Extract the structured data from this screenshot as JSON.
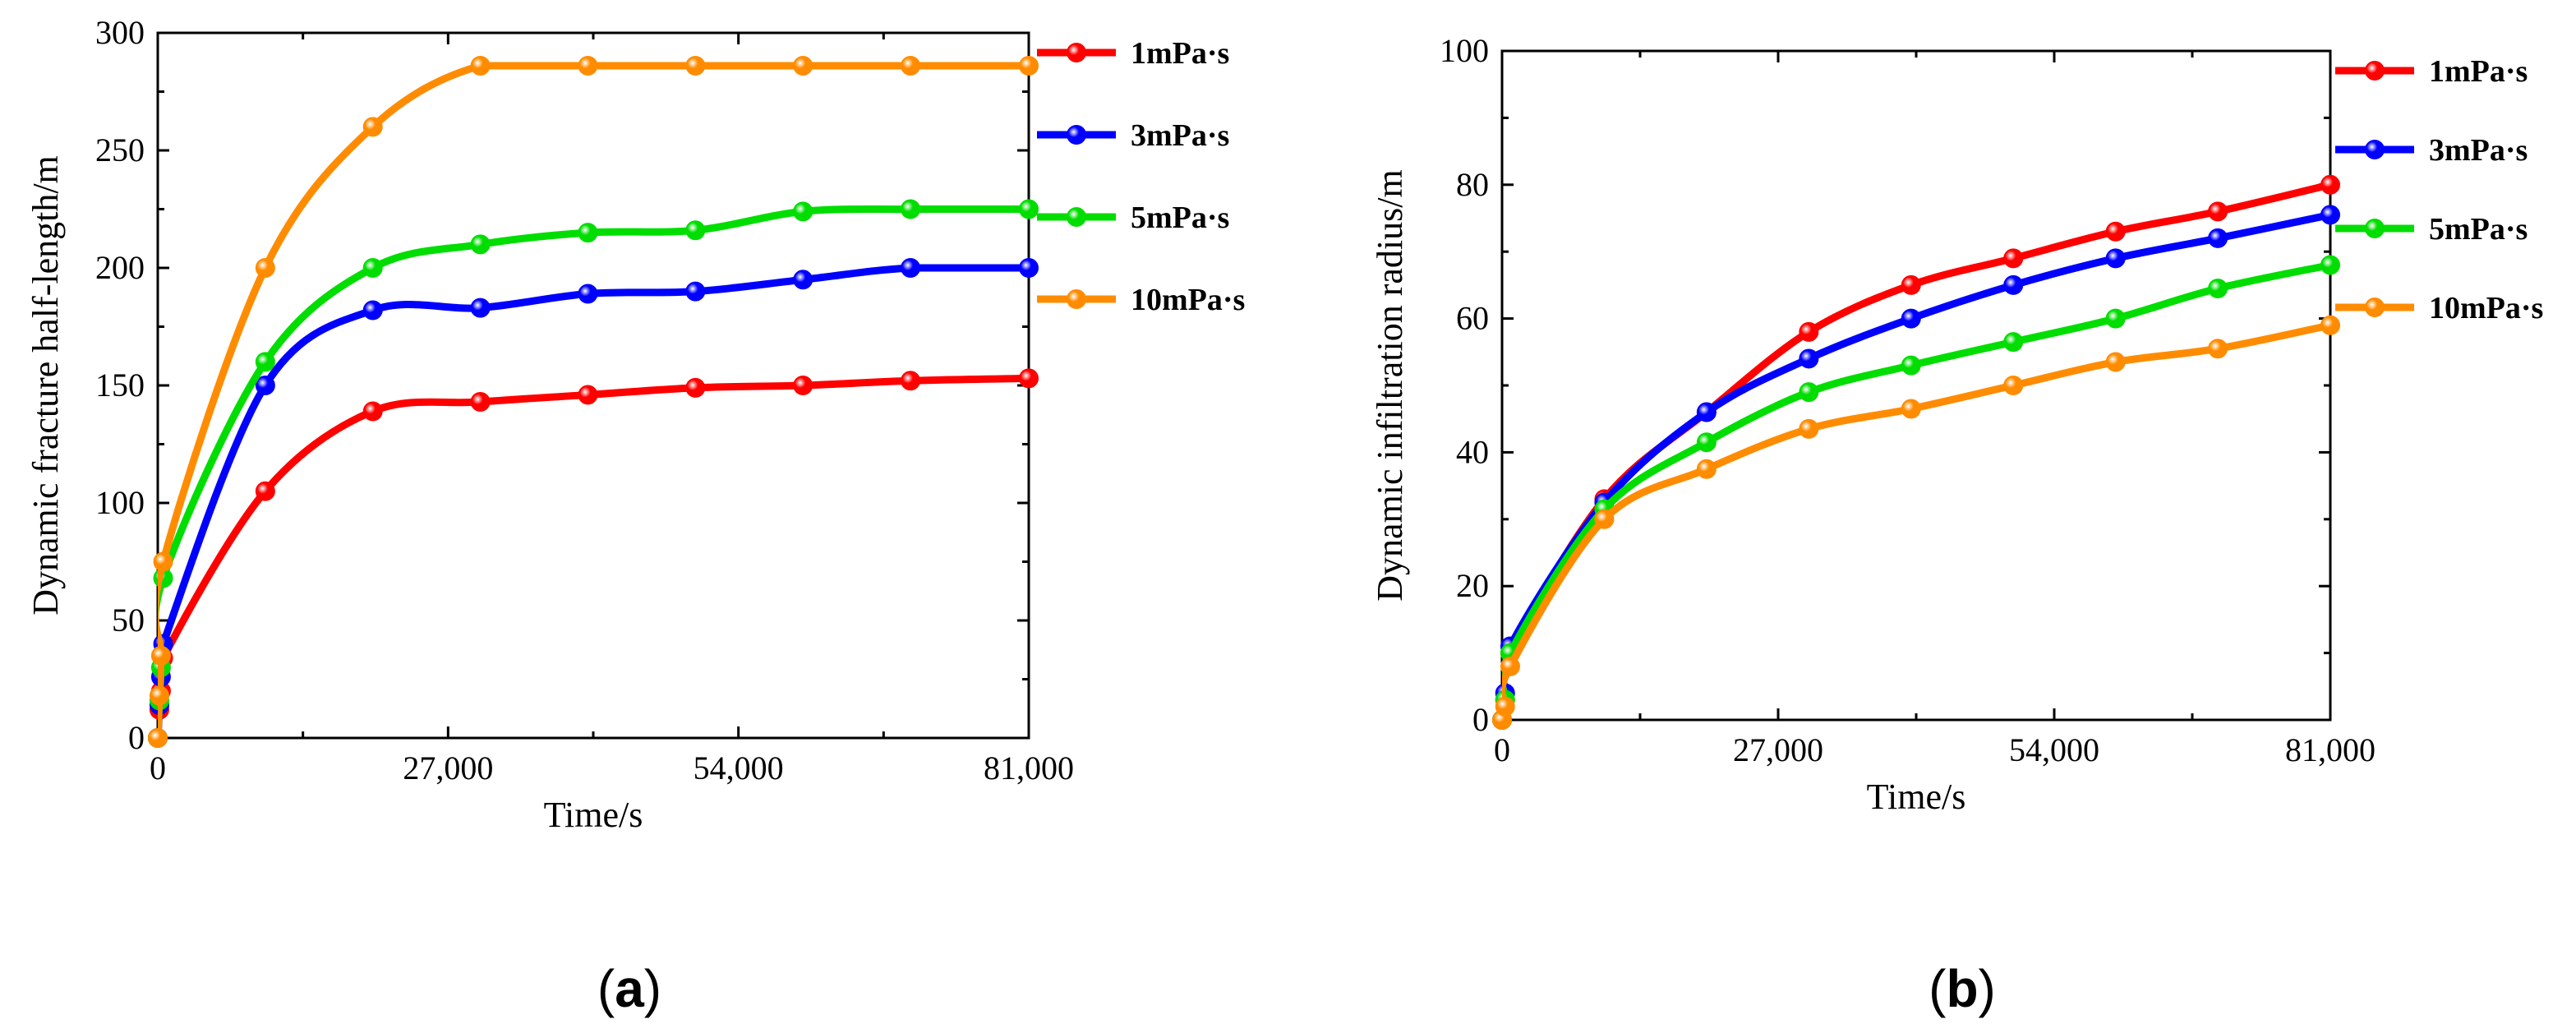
{
  "chart_data": [
    {
      "panel": "a",
      "caption": "(a)",
      "type": "line",
      "xlabel": "Time/s",
      "ylabel": "Dynamic fracture half-length/m",
      "xlim": [
        0,
        81000
      ],
      "ylim": [
        0,
        300
      ],
      "xticks": [
        0,
        27000,
        54000,
        81000
      ],
      "xtick_labels": [
        "0",
        "27,000",
        "54,000",
        "81,000"
      ],
      "yticks": [
        0,
        50,
        100,
        150,
        200,
        250,
        300
      ],
      "ytick_labels": [
        "0",
        "50",
        "100",
        "150",
        "200",
        "250",
        "300"
      ],
      "legend_position": "outside-right",
      "series": [
        {
          "name": "1mPa·s",
          "color": "#ff0000",
          "points": [
            [
              0,
              0
            ],
            [
              150,
              12
            ],
            [
              300,
              20
            ],
            [
              500,
              34
            ],
            [
              10000,
              105
            ],
            [
              20000,
              139
            ],
            [
              30000,
              143
            ],
            [
              40000,
              146
            ],
            [
              50000,
              149
            ],
            [
              60000,
              150
            ],
            [
              70000,
              152
            ],
            [
              81000,
              153
            ]
          ]
        },
        {
          "name": "3mPa·s",
          "color": "#0000ff",
          "points": [
            [
              0,
              0
            ],
            [
              150,
              14
            ],
            [
              300,
              26
            ],
            [
              500,
              40
            ],
            [
              10000,
              150
            ],
            [
              20000,
              182
            ],
            [
              30000,
              183
            ],
            [
              40000,
              189
            ],
            [
              50000,
              190
            ],
            [
              60000,
              195
            ],
            [
              70000,
              200
            ],
            [
              81000,
              200
            ]
          ]
        },
        {
          "name": "5mPa·s",
          "color": "#00dd00",
          "points": [
            [
              0,
              0
            ],
            [
              150,
              16
            ],
            [
              300,
              30
            ],
            [
              500,
              68
            ],
            [
              10000,
              160
            ],
            [
              20000,
              200
            ],
            [
              30000,
              210
            ],
            [
              40000,
              215
            ],
            [
              50000,
              216
            ],
            [
              60000,
              224
            ],
            [
              70000,
              225
            ],
            [
              81000,
              225
            ]
          ]
        },
        {
          "name": "10mPa·s",
          "color": "#ff8c00",
          "points": [
            [
              0,
              0
            ],
            [
              150,
              18
            ],
            [
              300,
              35
            ],
            [
              500,
              75
            ],
            [
              10000,
              200
            ],
            [
              20000,
              260
            ],
            [
              30000,
              286
            ],
            [
              40000,
              286
            ],
            [
              50000,
              286
            ],
            [
              60000,
              286
            ],
            [
              70000,
              286
            ],
            [
              81000,
              286
            ]
          ]
        }
      ]
    },
    {
      "panel": "b",
      "caption": "(b)",
      "type": "line",
      "xlabel": "Time/s",
      "ylabel": "Dynamic infiltration radius/m",
      "xlim": [
        0,
        81000
      ],
      "ylim": [
        0,
        100
      ],
      "xticks": [
        0,
        27000,
        54000,
        81000
      ],
      "xtick_labels": [
        "0",
        "27,000",
        "54,000",
        "81,000"
      ],
      "yticks": [
        0,
        20,
        40,
        60,
        80,
        100
      ],
      "ytick_labels": [
        "0",
        "20",
        "40",
        "60",
        "80",
        "100"
      ],
      "legend_position": "outside-right",
      "series": [
        {
          "name": "1mPa·s",
          "color": "#ff0000",
          "points": [
            [
              0,
              0
            ],
            [
              300,
              3
            ],
            [
              800,
              10
            ],
            [
              10000,
              33
            ],
            [
              20000,
              46
            ],
            [
              30000,
              58
            ],
            [
              40000,
              65
            ],
            [
              50000,
              69
            ],
            [
              60000,
              73
            ],
            [
              70000,
              76
            ],
            [
              81000,
              80
            ]
          ]
        },
        {
          "name": "3mPa·s",
          "color": "#0000ff",
          "points": [
            [
              0,
              0
            ],
            [
              300,
              4
            ],
            [
              800,
              11
            ],
            [
              10000,
              32.5
            ],
            [
              20000,
              46
            ],
            [
              30000,
              54
            ],
            [
              40000,
              60
            ],
            [
              50000,
              65
            ],
            [
              60000,
              69
            ],
            [
              70000,
              72
            ],
            [
              81000,
              75.5
            ]
          ]
        },
        {
          "name": "5mPa·s",
          "color": "#00dd00",
          "points": [
            [
              0,
              0
            ],
            [
              300,
              3
            ],
            [
              800,
              10
            ],
            [
              10000,
              31.5
            ],
            [
              20000,
              41.5
            ],
            [
              30000,
              49
            ],
            [
              40000,
              53
            ],
            [
              50000,
              56.5
            ],
            [
              60000,
              60
            ],
            [
              70000,
              64.5
            ],
            [
              81000,
              68
            ]
          ]
        },
        {
          "name": "10mPa·s",
          "color": "#ff8c00",
          "points": [
            [
              0,
              0
            ],
            [
              300,
              2
            ],
            [
              800,
              8
            ],
            [
              10000,
              30
            ],
            [
              20000,
              37.5
            ],
            [
              30000,
              43.5
            ],
            [
              40000,
              46.5
            ],
            [
              50000,
              50
            ],
            [
              60000,
              53.5
            ],
            [
              70000,
              55.5
            ],
            [
              81000,
              59
            ]
          ]
        }
      ]
    }
  ]
}
